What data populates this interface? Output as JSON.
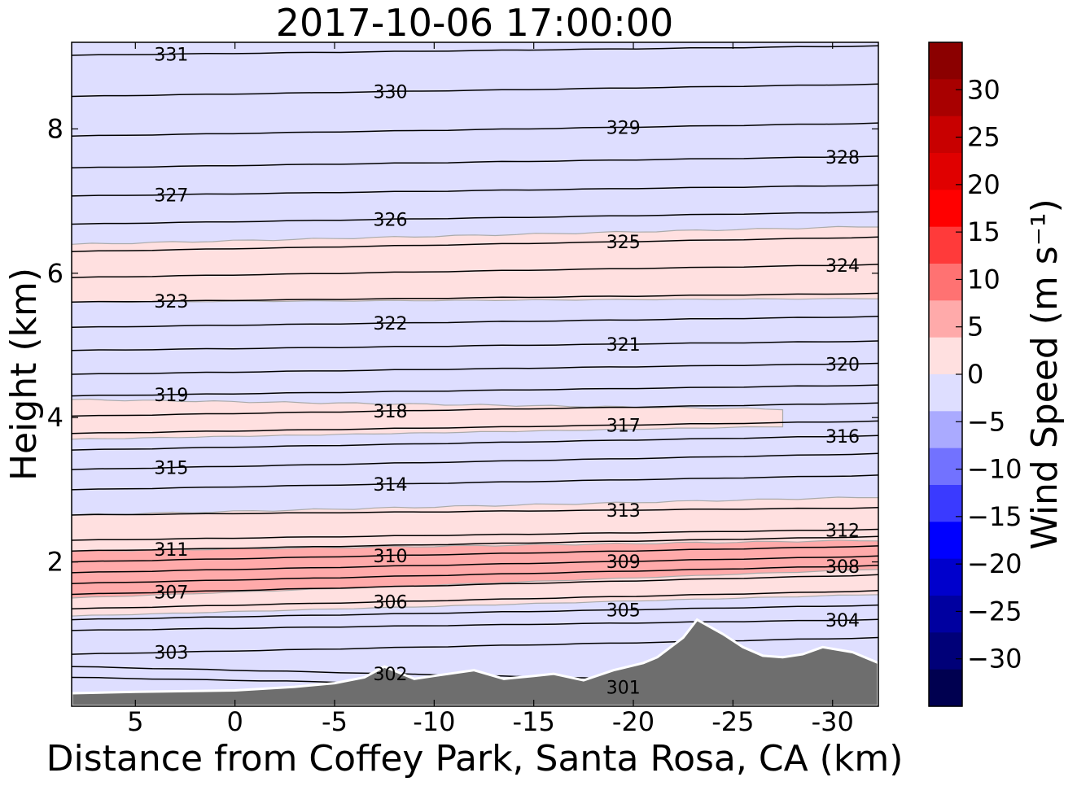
{
  "chart_data": {
    "type": "contour",
    "title": "2017-10-06 17:00:00",
    "xlabel": "Distance from Coffey Park, Santa Rosa, CA (km)",
    "ylabel": "Height (km)",
    "x_direction": "reversed",
    "xlim": [
      8.2,
      -32.3
    ],
    "ylim": [
      0,
      9.2
    ],
    "x_ticks": [
      5,
      0,
      -5,
      -10,
      -15,
      -20,
      -25,
      -30
    ],
    "x_tick_labels": [
      "5",
      "0",
      "-5",
      "-10",
      "-15",
      "-20",
      "-25",
      "-30"
    ],
    "y_ticks": [
      2,
      4,
      6,
      8
    ],
    "y_tick_labels": [
      "2",
      "4",
      "6",
      "8"
    ],
    "colorbar": {
      "label": "Wind Speed (m s⁻¹)",
      "tick_values": [
        30,
        25,
        20,
        15,
        10,
        5,
        0,
        -5,
        -10,
        -15,
        -20,
        -25,
        -30
      ],
      "tick_labels": [
        "30",
        "25",
        "20",
        "15",
        "10",
        "5",
        "0",
        "−5",
        "−10",
        "−15",
        "−20",
        "−25",
        "−30"
      ],
      "min": -35,
      "max": 35,
      "levels": [
        {
          "from": 30,
          "to": 35,
          "color": "#8b0000"
        },
        {
          "from": 25,
          "to": 30,
          "color": "#a80000"
        },
        {
          "from": 20,
          "to": 25,
          "color": "#c80000"
        },
        {
          "from": 15,
          "to": 20,
          "color": "#e00000"
        },
        {
          "from": 10,
          "to": 15,
          "color": "#ff0000"
        },
        {
          "from": 5,
          "to": 10,
          "color": "#ff3a3a"
        },
        {
          "from": 0,
          "to": 5,
          "color": "#ff7272"
        },
        {
          "from": -5,
          "to": 0,
          "color": "#ffaaaa"
        },
        {
          "from": -10,
          "to": -5,
          "color": "#ffe0e0"
        },
        {
          "from": -15,
          "to": -10,
          "color": "#dedeff"
        },
        {
          "from": -20,
          "to": -15,
          "color": "#aaaaff"
        },
        {
          "from": -25,
          "to": -20,
          "color": "#7272ff"
        },
        {
          "from": -30,
          "to": -25,
          "color": "#3a3aff"
        },
        {
          "from": -35,
          "to": -30,
          "color": "#0000ff"
        }
      ],
      "extra_levels_bottom": [
        "#0000cc",
        "#0000a0",
        "#000078",
        "#000050"
      ]
    },
    "background_speed_fill": "#dedeff",
    "speed_bands": [
      {
        "y_low_left": 5.6,
        "y_high_left": 6.4,
        "y_low_right": 5.65,
        "y_high_right": 6.65,
        "color": "#ffe0e0"
      },
      {
        "y_low_left": 3.7,
        "y_high_left": 4.25,
        "y_low_right": 3.9,
        "y_high_right": 4.1,
        "x_end": -27.5,
        "color": "#ffe0e0"
      },
      {
        "y_low_left": 1.25,
        "y_high_left": 2.65,
        "y_low_right": 1.55,
        "y_high_right": 2.9,
        "color": "#ffe0e0"
      },
      {
        "y_low_left": 1.5,
        "y_high_left": 2.15,
        "y_low_right": 1.9,
        "y_high_right": 2.3,
        "color": "#ffaaaa"
      }
    ],
    "theta_contours": [
      {
        "level": 331,
        "y_left": 9.02,
        "y_right": 9.15,
        "label": "331"
      },
      {
        "level": 330,
        "y_left": 8.45,
        "y_right": 8.62,
        "label": "330"
      },
      {
        "level": 329,
        "y_left": 7.9,
        "y_right": 8.08,
        "label": "329"
      },
      {
        "level": 328,
        "y_left": 7.46,
        "y_right": 7.62,
        "label": "328"
      },
      {
        "level": 327,
        "y_left": 7.07,
        "y_right": 7.22,
        "label": "327"
      },
      {
        "level": 326,
        "y_left": 6.68,
        "y_right": 6.85,
        "label": "326"
      },
      {
        "level": 325,
        "y_left": 6.3,
        "y_right": 6.5,
        "label": "325"
      },
      {
        "level": 324,
        "y_left": 5.94,
        "y_right": 6.12,
        "label": "324"
      },
      {
        "level": 323,
        "y_left": 5.6,
        "y_right": 5.72,
        "label": "323"
      },
      {
        "level": 322,
        "y_left": 5.25,
        "y_right": 5.4,
        "label": "322"
      },
      {
        "level": 321,
        "y_left": 4.93,
        "y_right": 5.06,
        "label": "321"
      },
      {
        "level": 320,
        "y_left": 4.6,
        "y_right": 4.75,
        "label": "320"
      },
      {
        "level": 319,
        "y_left": 4.3,
        "y_right": 4.45,
        "label": "319"
      },
      {
        "level": 318,
        "y_left": 4.02,
        "y_right": 4.2,
        "label": "318"
      },
      {
        "level": 317,
        "y_left": 3.78,
        "y_right": 3.95,
        "label": "317"
      },
      {
        "level": 316,
        "y_left": 3.55,
        "y_right": 3.75,
        "label": "316"
      },
      {
        "level": 315,
        "y_left": 3.28,
        "y_right": 3.5,
        "label": "315"
      },
      {
        "level": 314,
        "y_left": 3.0,
        "y_right": 3.2,
        "label": "314"
      },
      {
        "level": 313,
        "y_left": 2.65,
        "y_right": 2.75,
        "label": "313"
      },
      {
        "level": 312,
        "y_left": 2.3,
        "y_right": 2.45,
        "label": "312"
      },
      {
        "level": 311,
        "y_left": 2.15,
        "y_right": 2.35,
        "label": "311"
      },
      {
        "level": 310,
        "y_left": 2.0,
        "y_right": 2.22,
        "label": "310"
      },
      {
        "level": 309,
        "y_left": 1.85,
        "y_right": 2.08,
        "label": "309"
      },
      {
        "level": 308,
        "y_left": 1.7,
        "y_right": 1.95,
        "label": "308"
      },
      {
        "level": 307,
        "y_left": 1.55,
        "y_right": 1.82,
        "label": "307"
      },
      {
        "level": 306,
        "y_left": 1.35,
        "y_right": 1.6,
        "label": "306"
      },
      {
        "level": 305,
        "y_left": 1.2,
        "y_right": 1.4,
        "label": "305"
      },
      {
        "level": 304,
        "y_left": 1.05,
        "y_right": 1.2,
        "label": "304"
      },
      {
        "level": 303,
        "y_left": 0.72,
        "y_right": 0.95,
        "label": "303"
      },
      {
        "level": 302,
        "y_left": 0.55,
        "y_right": 0.3,
        "label": "302"
      },
      {
        "level": 301,
        "y_left": 0.4,
        "y_right": 0.2,
        "label": "301"
      }
    ],
    "terrain": {
      "x": [
        8.2,
        5,
        0,
        -3,
        -5,
        -6.5,
        -7.5,
        -9,
        -10,
        -12,
        -13.5,
        -15,
        -16,
        -17.5,
        -19,
        -20.5,
        -21.2,
        -22.5,
        -23.2,
        -24.5,
        -25.5,
        -26.5,
        -27.5,
        -28.5,
        -29.5,
        -31,
        -32.3
      ],
      "y": [
        0.18,
        0.2,
        0.22,
        0.27,
        0.32,
        0.4,
        0.55,
        0.38,
        0.42,
        0.5,
        0.38,
        0.42,
        0.45,
        0.36,
        0.5,
        0.6,
        0.68,
        0.95,
        1.2,
        1.0,
        0.82,
        0.7,
        0.68,
        0.72,
        0.82,
        0.75,
        0.6
      ],
      "color": "#6e6e6e"
    }
  }
}
